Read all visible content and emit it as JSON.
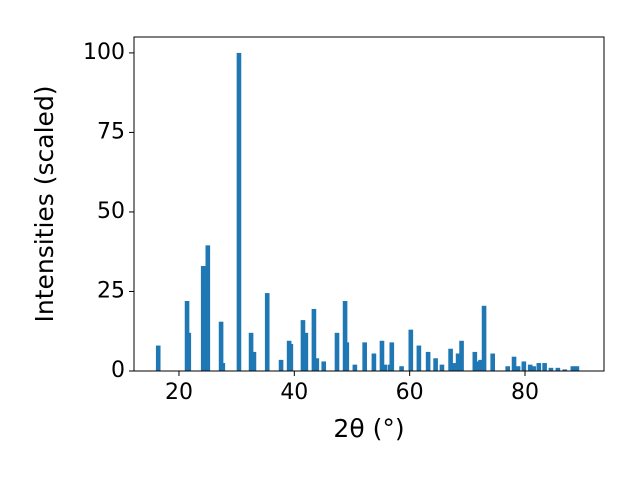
{
  "chart_data": {
    "type": "bar",
    "xlabel": "2θ (°)",
    "ylabel": "Intensities (scaled)",
    "color": "#1f77b4",
    "bar_width": 0.8,
    "x": [
      16.4,
      21.4,
      21.7,
      24.2,
      24.5,
      25.0,
      27.3,
      27.6,
      30.4,
      32.5,
      33.0,
      35.3,
      37.7,
      39.1,
      39.4,
      41.5,
      42.0,
      43.4,
      43.9,
      45.1,
      47.4,
      48.8,
      49.1,
      50.5,
      52.2,
      53.8,
      55.2,
      55.7,
      56.6,
      56.9,
      58.6,
      60.2,
      61.6,
      63.2,
      64.5,
      65.6,
      67.1,
      67.7,
      68.4,
      69.0,
      71.3,
      71.8,
      72.3,
      72.9,
      74.4,
      77.0,
      78.1,
      78.8,
      79.8,
      80.9,
      81.5,
      82.4,
      83.4,
      84.5,
      85.7,
      86.9,
      88.3,
      89.0
    ],
    "values": [
      8,
      22,
      12,
      33,
      24,
      39.5,
      15.5,
      2.5,
      100,
      12,
      6,
      24.5,
      3.5,
      9.5,
      8.5,
      16,
      12,
      19.5,
      4,
      3,
      12,
      22,
      9,
      2,
      9,
      5.5,
      9.5,
      2,
      2,
      9,
      1.5,
      13,
      8,
      6,
      4,
      2,
      7,
      2.5,
      5.5,
      9.5,
      6,
      3,
      3.5,
      20.5,
      5.5,
      1.5,
      4.5,
      1.5,
      3,
      2,
      1.5,
      2.5,
      2.5,
      1,
      1,
      0.5,
      1.5,
      1.5
    ],
    "xlim": [
      12.2,
      93.7
    ],
    "ylim": [
      0,
      105
    ],
    "xticks": [
      20,
      40,
      60,
      80
    ],
    "yticks": [
      0,
      25,
      50,
      75,
      100
    ]
  }
}
